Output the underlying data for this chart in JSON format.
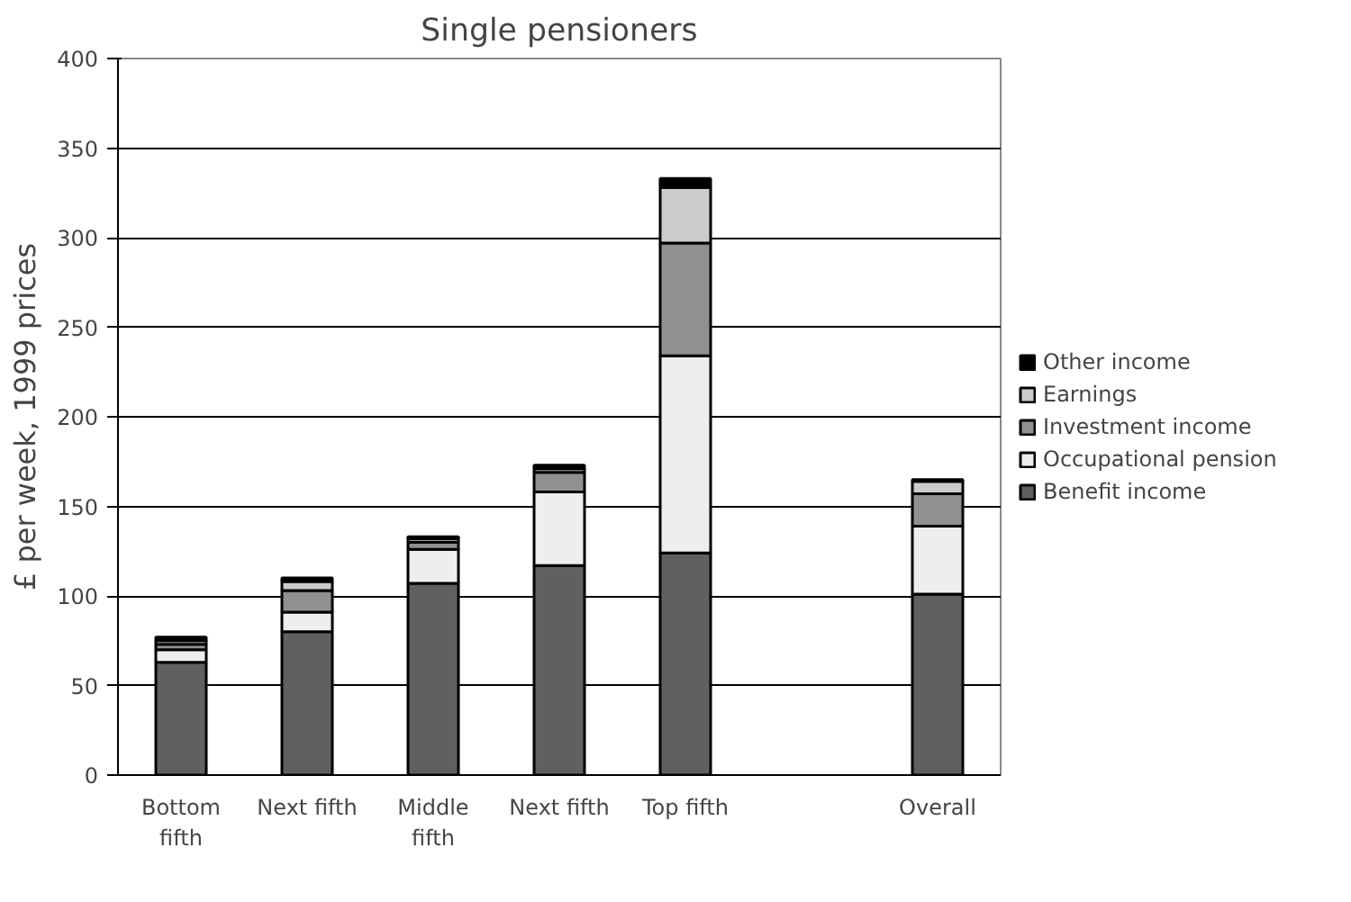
{
  "chart_data": {
    "type": "bar",
    "stacked": true,
    "title": "Single pensioners",
    "ylabel": "£ per week, 1999 prices",
    "categories": [
      "Bottom\nfifth",
      "Next fifth",
      "Middle\nfifth",
      "Next fifth",
      "Top fifth",
      null,
      "Overall"
    ],
    "series": [
      {
        "name": "Benefit income",
        "color": "#606060",
        "values": [
          63,
          80,
          107,
          117,
          124,
          null,
          101
        ]
      },
      {
        "name": "Occupational pension",
        "color": "#eeeeee",
        "values": [
          7,
          11,
          19,
          41,
          110,
          null,
          38
        ]
      },
      {
        "name": "Investment income",
        "color": "#909090",
        "values": [
          3,
          12,
          4,
          11,
          63,
          null,
          18
        ]
      },
      {
        "name": "Earnings",
        "color": "#cccccc",
        "values": [
          2,
          5,
          2,
          2,
          31,
          null,
          7
        ]
      },
      {
        "name": "Other income",
        "color": "#000000",
        "values": [
          2,
          2,
          1,
          2,
          5,
          null,
          1
        ]
      }
    ],
    "ylim": [
      0,
      400
    ],
    "yticks": [
      0,
      50,
      100,
      150,
      200,
      250,
      300,
      350,
      400
    ],
    "grid": "y",
    "legend": "right"
  }
}
